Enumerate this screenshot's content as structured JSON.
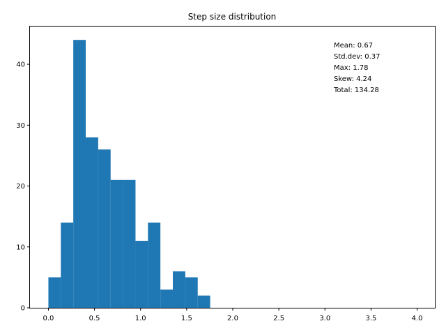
{
  "chart_data": {
    "type": "bar",
    "title": "Step size distribution",
    "xlabel": "",
    "ylabel": "",
    "bin_width": 0.135,
    "bin_edges_start": 0.0,
    "counts": [
      5,
      14,
      44,
      28,
      26,
      21,
      21,
      11,
      14,
      3,
      6,
      5,
      2
    ],
    "xlim": [
      -0.2,
      4.2
    ],
    "ylim": [
      0,
      46.2
    ],
    "xticks": [
      0.0,
      0.5,
      1.0,
      1.5,
      2.0,
      2.5,
      3.0,
      3.5,
      4.0
    ],
    "xtick_labels": [
      "0.0",
      "0.5",
      "1.0",
      "1.5",
      "2.0",
      "2.5",
      "3.0",
      "3.5",
      "4.0"
    ],
    "yticks": [
      0,
      10,
      20,
      30,
      40
    ],
    "ytick_labels": [
      "0",
      "10",
      "20",
      "30",
      "40"
    ],
    "bar_color": "#1f77b4",
    "grid": false,
    "stats": {
      "mean": "Mean: 0.67",
      "stddev": "Std.dev: 0.37",
      "max": "Max: 1.78",
      "skew": "Skew: 4.24",
      "total": "Total: 134.28"
    }
  }
}
